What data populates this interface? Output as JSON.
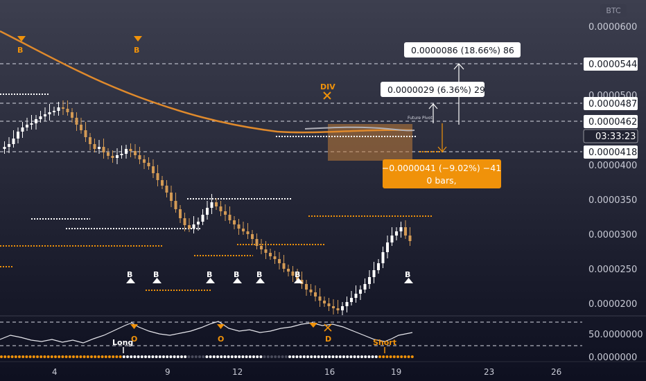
{
  "currency_badge": "BTC",
  "price_axis": {
    "ticks": [
      "0.0000600",
      "0.0000500",
      "0.0000400",
      "0.0000350",
      "0.0000300",
      "0.0000250",
      "0.0000200"
    ],
    "labels": [
      {
        "text": "0.0000544",
        "style": "box"
      },
      {
        "text": "0.0000487",
        "style": "box"
      },
      {
        "text": "0.0000462",
        "style": "box"
      },
      {
        "text": "03:33:23",
        "style": "countdown"
      },
      {
        "text": "0.0000418",
        "style": "box"
      }
    ]
  },
  "oscillator_axis": {
    "ticks": [
      "50.0000000",
      "0.0000000"
    ]
  },
  "date_axis": {
    "ticks": [
      "4",
      "9",
      "12",
      "16",
      "19",
      "23",
      "26"
    ]
  },
  "measure_boxes": {
    "up_large": "0.0000086 (18.66%) 86",
    "up_small": "0.0000029 (6.36%) 29",
    "down_line1": "−0.0000041 (−9.02%) −41",
    "down_line2": "0 bars,"
  },
  "chart_annotations": {
    "future_pivot": "Future Pivot",
    "div": "DIV",
    "sell_markers": [
      "B",
      "B"
    ],
    "buy_markers": [
      "B",
      "B",
      "B",
      "B",
      "B",
      "B",
      "B"
    ],
    "osc_markers": [
      "O",
      "O",
      "D"
    ],
    "long_label": "Long",
    "short_label": "Short"
  },
  "colors": {
    "accent_orange": "#f0920a",
    "ma_line": "#e08a2c",
    "bull_candle": "#ffffff",
    "bear_candle": "#d39a55",
    "price_box": "#ffffff",
    "countdown_box": "#222433"
  },
  "chart_data": {
    "type": "candlestick",
    "x_axis_ticks": [
      "4",
      "9",
      "12",
      "16",
      "19",
      "23",
      "26"
    ],
    "y_axis_ticks": [
      6e-05,
      5e-05,
      4e-05,
      3.5e-05,
      3e-05,
      2.5e-05,
      2e-05
    ],
    "ylim": [
      1.8e-05,
      6.25e-05
    ],
    "price_levels": [
      5.44e-05,
      4.87e-05,
      4.62e-05,
      4.18e-05
    ],
    "measurements": [
      {
        "change": 8.6e-06,
        "percent": 18.66,
        "ticks": 86
      },
      {
        "change": 2.9e-06,
        "percent": 6.36,
        "ticks": 29
      },
      {
        "change": -4.1e-06,
        "percent": -9.02,
        "ticks": -41,
        "bars": 0
      }
    ],
    "oscillator_ticks": [
      50,
      0
    ]
  }
}
